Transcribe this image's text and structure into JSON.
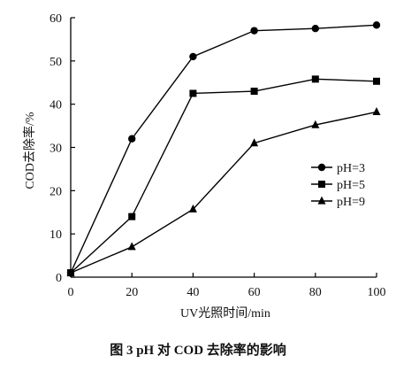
{
  "chart_data": {
    "type": "line",
    "x": [
      0,
      20,
      40,
      60,
      80,
      100
    ],
    "series": [
      {
        "name": "pH=3",
        "marker": "circle",
        "values": [
          1,
          32,
          51,
          57,
          57.5,
          58.3
        ]
      },
      {
        "name": "pH=5",
        "marker": "square",
        "values": [
          1,
          14,
          42.5,
          43,
          45.8,
          45.3
        ]
      },
      {
        "name": "pH=9",
        "marker": "triangle",
        "values": [
          1,
          7,
          15.7,
          31,
          35.2,
          38.2
        ]
      }
    ],
    "xlabel": "UV光照时间/min",
    "ylabel": "COD去除率/%",
    "xlim": [
      0,
      100
    ],
    "ylim": [
      0,
      60
    ],
    "xticks": [
      "0",
      "20",
      "40",
      "60",
      "80",
      "100"
    ],
    "yticks": [
      "0",
      "10",
      "20",
      "30",
      "40",
      "50",
      "60"
    ],
    "grid": false,
    "legend_position": "right",
    "line_color": "#000000"
  },
  "caption": "图 3   pH 对 COD 去除率的影响"
}
